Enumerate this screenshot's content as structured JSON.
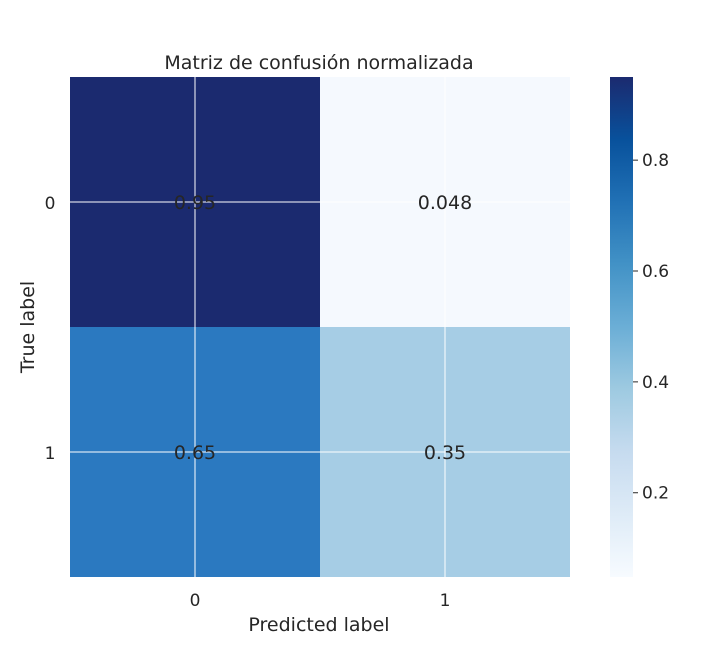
{
  "chart_data": {
    "type": "heatmap",
    "title": "Matriz de confusión normalizada",
    "xlabel": "Predicted label",
    "ylabel": "True label",
    "x_categories": [
      "0",
      "1"
    ],
    "y_categories": [
      "0",
      "1"
    ],
    "values": [
      [
        0.95,
        0.048
      ],
      [
        0.65,
        0.35
      ]
    ],
    "cell_labels": [
      [
        "0.95",
        "0.048"
      ],
      [
        "0.65",
        "0.35"
      ]
    ],
    "colormap": "Blues",
    "colorbar": {
      "range": [
        0.048,
        0.95
      ],
      "ticks": [
        0.2,
        0.4,
        0.6,
        0.8
      ],
      "tick_labels": [
        "0.2",
        "0.4",
        "0.6",
        "0.8"
      ]
    },
    "grid": true
  },
  "colors": {
    "cell_0_0": "#1b2a6f",
    "cell_0_1": "#f5f9fe",
    "cell_1_0": "#2b79c0",
    "cell_1_1": "#a6cde5",
    "text_on_dark": "#ffffff",
    "text_on_light": "#1b2a6f",
    "grid": "#ffffff"
  }
}
